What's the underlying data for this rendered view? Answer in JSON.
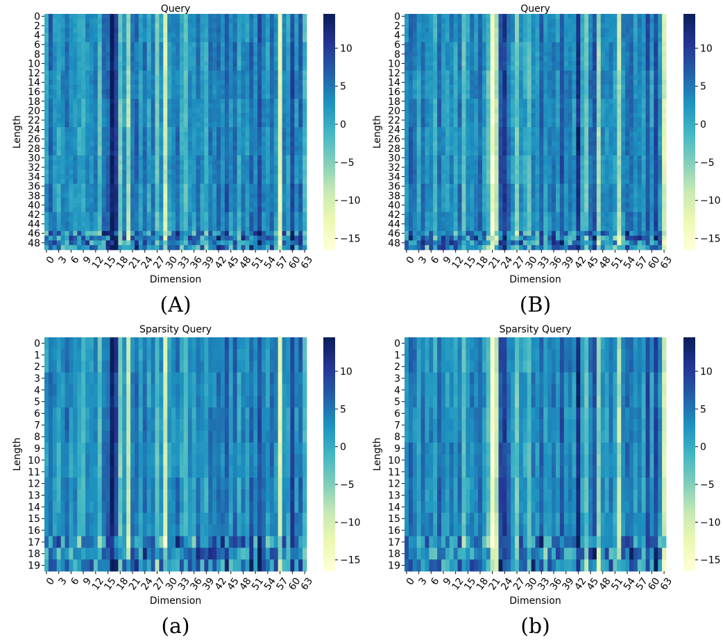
{
  "colormap": [
    "#ffffd9",
    "#edf8b1",
    "#c7e9b4",
    "#7fcdbb",
    "#41b6c4",
    "#1d91c0",
    "#225ea8",
    "#253494",
    "#081d58"
  ],
  "chart_data": [
    {
      "type": "heatmap",
      "id": "A",
      "title": "Query",
      "xlabel": "Dimension",
      "ylabel": "Length",
      "rows": 50,
      "cols": 64,
      "x_ticks": [
        "0",
        "3",
        "6",
        "9",
        "12",
        "15",
        "18",
        "21",
        "24",
        "27",
        "30",
        "33",
        "36",
        "39",
        "42",
        "45",
        "48",
        "51",
        "54",
        "57",
        "60",
        "63"
      ],
      "y_ticks": [
        "0",
        "2",
        "4",
        "6",
        "8",
        "10",
        "12",
        "14",
        "16",
        "18",
        "20",
        "22",
        "24",
        "26",
        "28",
        "30",
        "32",
        "34",
        "36",
        "38",
        "40",
        "42",
        "44",
        "46",
        "48"
      ],
      "colorbar_ticks": [
        "10",
        "5",
        "0",
        "−5",
        "−10",
        "−15"
      ],
      "vmin": -16.5,
      "vmax": 14.5,
      "column_means": [
        2,
        6,
        3,
        1,
        3,
        5,
        2,
        3,
        1,
        0,
        3,
        2,
        4,
        -2,
        5,
        6,
        14,
        10,
        -4,
        2,
        -7,
        4,
        6,
        2,
        5,
        1,
        4,
        -3,
        2,
        -10,
        2,
        3,
        5,
        1,
        -2,
        3,
        1,
        4,
        2,
        0,
        5,
        3,
        6,
        4,
        7,
        2,
        6,
        1,
        4,
        2,
        6,
        3,
        8,
        4,
        2,
        5,
        3,
        -12,
        4,
        1,
        9,
        3,
        6,
        -1
      ],
      "caption": "(A)"
    },
    {
      "type": "heatmap",
      "id": "B",
      "title": "Query",
      "xlabel": "Dimension",
      "ylabel": "Length",
      "rows": 50,
      "cols": 64,
      "x_ticks": [
        "0",
        "3",
        "6",
        "9",
        "12",
        "15",
        "18",
        "21",
        "24",
        "27",
        "30",
        "33",
        "36",
        "39",
        "42",
        "45",
        "48",
        "51",
        "54",
        "57",
        "60",
        "63"
      ],
      "y_ticks": [
        "0",
        "2",
        "4",
        "6",
        "8",
        "10",
        "12",
        "14",
        "16",
        "18",
        "20",
        "22",
        "24",
        "26",
        "28",
        "30",
        "32",
        "34",
        "36",
        "38",
        "40",
        "42",
        "44",
        "46",
        "48"
      ],
      "colorbar_ticks": [
        "10",
        "5",
        "0",
        "−5",
        "−10",
        "−15"
      ],
      "vmin": -16.5,
      "vmax": 14.5,
      "column_means": [
        3,
        6,
        4,
        1,
        5,
        2,
        4,
        0,
        6,
        3,
        2,
        4,
        1,
        5,
        -3,
        2,
        4,
        3,
        6,
        2,
        -2,
        -14,
        -8,
        8,
        10,
        5,
        2,
        -4,
        3,
        1,
        -2,
        4,
        2,
        6,
        1,
        3,
        5,
        2,
        8,
        3,
        4,
        2,
        12,
        1,
        -3,
        5,
        8,
        -6,
        3,
        2,
        4,
        1,
        -8,
        3,
        5,
        6,
        2,
        4,
        1,
        8,
        2,
        9,
        3,
        -10
      ],
      "caption": "(B)"
    },
    {
      "type": "heatmap",
      "id": "a",
      "title": "Sparsity Query",
      "xlabel": "Dimension",
      "ylabel": "Length",
      "rows": 20,
      "cols": 64,
      "x_ticks": [
        "0",
        "3",
        "6",
        "9",
        "12",
        "15",
        "18",
        "21",
        "24",
        "27",
        "30",
        "33",
        "36",
        "39",
        "42",
        "45",
        "48",
        "51",
        "54",
        "57",
        "60",
        "63"
      ],
      "y_ticks": [
        "0",
        "1",
        "2",
        "3",
        "4",
        "5",
        "6",
        "7",
        "8",
        "9",
        "10",
        "11",
        "12",
        "13",
        "14",
        "15",
        "16",
        "17",
        "18",
        "19"
      ],
      "colorbar_ticks": [
        "10",
        "5",
        "0",
        "−5",
        "−10",
        "−15"
      ],
      "vmin": -16.5,
      "vmax": 14.5,
      "column_means": [
        2,
        6,
        3,
        1,
        3,
        5,
        2,
        3,
        1,
        0,
        3,
        2,
        4,
        -2,
        5,
        6,
        14,
        10,
        -4,
        2,
        -7,
        4,
        6,
        2,
        5,
        1,
        4,
        -3,
        2,
        -10,
        2,
        3,
        5,
        1,
        -2,
        3,
        1,
        4,
        2,
        0,
        5,
        3,
        6,
        4,
        7,
        2,
        6,
        1,
        4,
        2,
        6,
        3,
        8,
        4,
        2,
        5,
        3,
        -12,
        4,
        1,
        9,
        3,
        6,
        -1
      ],
      "caption": "(a)"
    },
    {
      "type": "heatmap",
      "id": "b",
      "title": "Sparsity Query",
      "xlabel": "Dimension",
      "ylabel": "Length",
      "rows": 20,
      "cols": 64,
      "x_ticks": [
        "0",
        "3",
        "6",
        "9",
        "12",
        "15",
        "18",
        "21",
        "24",
        "27",
        "30",
        "33",
        "36",
        "39",
        "42",
        "45",
        "48",
        "51",
        "54",
        "57",
        "60",
        "63"
      ],
      "y_ticks": [
        "0",
        "1",
        "2",
        "3",
        "4",
        "5",
        "6",
        "7",
        "8",
        "9",
        "10",
        "11",
        "12",
        "13",
        "14",
        "15",
        "16",
        "17",
        "18",
        "19"
      ],
      "colorbar_ticks": [
        "10",
        "5",
        "0",
        "−5",
        "−10",
        "−15"
      ],
      "vmin": -16.5,
      "vmax": 14.5,
      "column_means": [
        3,
        6,
        4,
        1,
        5,
        2,
        4,
        0,
        6,
        3,
        2,
        4,
        1,
        5,
        -3,
        2,
        4,
        3,
        6,
        2,
        -2,
        -14,
        -8,
        8,
        10,
        5,
        2,
        -4,
        3,
        1,
        -2,
        4,
        2,
        6,
        1,
        3,
        5,
        2,
        8,
        3,
        4,
        2,
        12,
        1,
        -3,
        5,
        8,
        -6,
        3,
        2,
        4,
        1,
        -8,
        3,
        5,
        6,
        2,
        4,
        1,
        8,
        2,
        9,
        3,
        -10
      ],
      "caption": "(b)"
    }
  ]
}
